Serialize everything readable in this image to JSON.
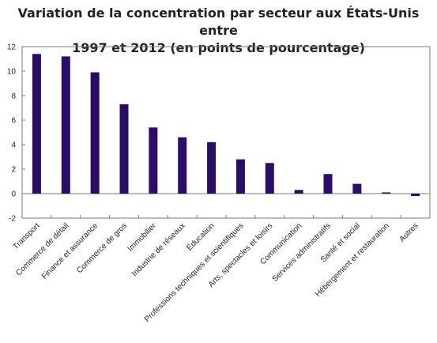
{
  "chart_data": {
    "type": "bar",
    "title_lines": [
      "Variation de la concentration par secteur aux États-Unis entre",
      "1997 et 2012 (en points de pourcentage)"
    ],
    "categories": [
      "Transport",
      "Commerce de détail",
      "Finance et assurance",
      "Commerce de gros",
      "Immobilier",
      "Industrie de réseaux",
      "Éducation",
      "Professions techniques et scientifiques",
      "Arts, spectacles et loisirs",
      "Communication",
      "Services administratifs",
      "Santé et social",
      "Hébergement et restauration",
      "Autres"
    ],
    "values": [
      11.4,
      11.2,
      9.9,
      7.3,
      5.4,
      4.6,
      4.2,
      2.8,
      2.5,
      0.3,
      1.6,
      0.8,
      0.1,
      -0.2
    ],
    "xlabel": "",
    "ylabel": "",
    "ylim": [
      -2,
      12
    ],
    "yticks": [
      -2,
      0,
      2,
      4,
      6,
      8,
      10,
      12
    ],
    "grid": false,
    "legend": "none",
    "bar_color": "#2a0d6a"
  }
}
